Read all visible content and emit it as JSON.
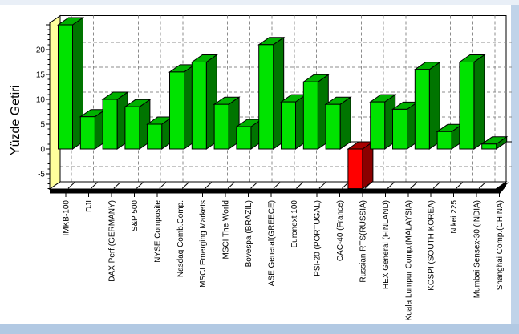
{
  "window": {
    "top_strip_color": "#E9EFF7",
    "right_strip_color": "#C0D3E9",
    "bottom_strip_color": "#B2C9E3",
    "background": "#FFFFFF"
  },
  "chart_data": {
    "type": "bar",
    "title": "",
    "xlabel": "",
    "ylabel": "Yüzde Getiri",
    "ylim": [
      -8.1,
      25.5
    ],
    "yticks": [
      -5,
      0,
      5,
      10,
      15,
      20
    ],
    "grid": true,
    "legend": false,
    "style": "3d-column",
    "categories": [
      "IMKB-100",
      "DJI",
      "DAX Perf.(GERMANY)",
      "S&P 500",
      "NYSE Composite",
      "Nasdaq Comb.Comp.",
      "MSCI Emerging Markets",
      "MSCI The World",
      "Bovespa (BRAZIL)",
      "ASE General(GREECE)",
      "Euronext 100",
      "PSI-20 (PORTUGAL)",
      "CAC-40 (France)",
      "Russian RTS(RUSSIA)",
      "HEX General (FINLAND)",
      "Kuala Lumpur Comp.(MALAYSIA)",
      "KOSPI (SOUTH KOREA)",
      "Nikei 225",
      "Mumbai Sensex-30 (INDIA)",
      "Shanghai Comp.(CHINA)"
    ],
    "values": [
      25,
      6.5,
      10,
      8.5,
      5,
      15.5,
      17.5,
      9,
      4.5,
      21,
      9.5,
      13.5,
      9,
      -8,
      9.5,
      8,
      16,
      3.5,
      17.5,
      1
    ],
    "colors": {
      "positive_front": "#00E300",
      "positive_top": "#00B100",
      "positive_side": "#007500",
      "negative_front": "#FF0000",
      "negative_top": "#A80000",
      "negative_side": "#8B0000",
      "wall": "#FFFF9C",
      "floor": "#FFFFFF",
      "outline": "#000000",
      "grid": "#8C8C8C"
    }
  }
}
